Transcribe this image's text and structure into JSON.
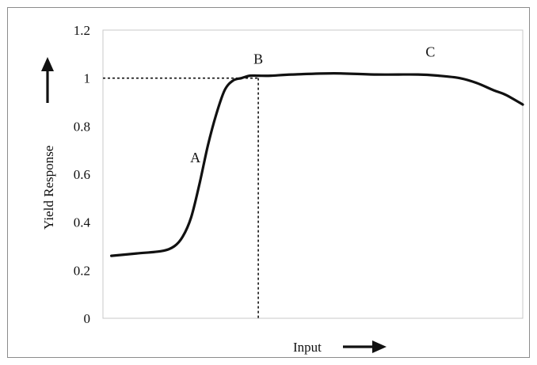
{
  "chart_data": {
    "type": "line",
    "title": "",
    "xlabel": "Input",
    "ylabel": "Yield Response",
    "ylim": [
      0,
      1.2
    ],
    "yticks": [
      "0",
      "0.2",
      "0.4",
      "0.6",
      "0.8",
      "1",
      "1.2"
    ],
    "xlim": [
      0,
      1
    ],
    "grid": false,
    "legend": "none",
    "series": [
      {
        "x": [
          0.02,
          0.08,
          0.14,
          0.17,
          0.19,
          0.21,
          0.23,
          0.25,
          0.27,
          0.29,
          0.31,
          0.33,
          0.35,
          0.37,
          0.4,
          0.45,
          0.55,
          0.65,
          0.75,
          0.8,
          0.85,
          0.89,
          0.93,
          0.96,
          1.0
        ],
        "y": [
          0.26,
          0.27,
          0.28,
          0.3,
          0.34,
          0.42,
          0.56,
          0.72,
          0.85,
          0.95,
          0.99,
          1.0,
          1.01,
          1.01,
          1.01,
          1.015,
          1.02,
          1.015,
          1.015,
          1.01,
          1.0,
          0.98,
          0.95,
          0.93,
          0.89
        ]
      }
    ],
    "reference_lines": {
      "y_value": 1,
      "x_value": 0.37
    },
    "annotations": [
      {
        "text": "A",
        "x": 0.22,
        "y": 0.67
      },
      {
        "text": "B",
        "x": 0.37,
        "y": 1.08
      },
      {
        "text": "C",
        "x": 0.78,
        "y": 1.11
      }
    ],
    "colors": {
      "line": "#111111",
      "frame": "#8c8c8c",
      "axis": "#c8c8c8"
    }
  }
}
